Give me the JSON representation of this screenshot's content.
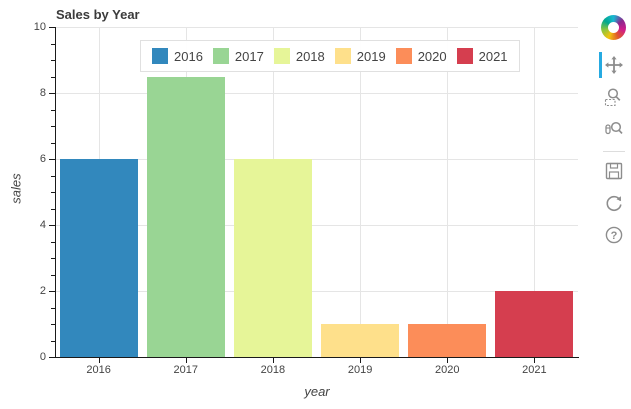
{
  "title": "Sales by Year",
  "chart_data": {
    "type": "bar",
    "title": "Sales by Year",
    "categories": [
      "2016",
      "2017",
      "2018",
      "2019",
      "2020",
      "2021"
    ],
    "values": [
      6,
      8.5,
      6,
      1,
      1,
      2
    ],
    "bar_colors": [
      "#3288bd",
      "#99d594",
      "#e6f598",
      "#fee08b",
      "#fc8d59",
      "#d53e4f"
    ],
    "xlabel": "year",
    "ylabel": "sales",
    "ylim": [
      0,
      10
    ],
    "yticks": [
      0,
      2,
      4,
      6,
      8,
      10
    ],
    "y_minor_tick_step": 0.5,
    "grid": true,
    "vertical_grid": "category-centers",
    "legend_position": "top_center"
  },
  "axes": {
    "x_label": "year",
    "y_label": "sales",
    "y_tick_labels": [
      "0",
      "2",
      "4",
      "6",
      "8",
      "10"
    ],
    "x_tick_labels": [
      "2016",
      "2017",
      "2018",
      "2019",
      "2020",
      "2021"
    ]
  },
  "legend": {
    "items": [
      {
        "label": "2016",
        "color": "#3288bd"
      },
      {
        "label": "2017",
        "color": "#99d594"
      },
      {
        "label": "2018",
        "color": "#e6f598"
      },
      {
        "label": "2019",
        "color": "#fee08b"
      },
      {
        "label": "2020",
        "color": "#fc8d59"
      },
      {
        "label": "2021",
        "color": "#d53e4f"
      }
    ]
  },
  "toolbar": {
    "logo_icon": "bokeh-logo-icon",
    "active_color": "#26aae1",
    "tools": [
      {
        "name": "pan",
        "icon": "move-arrows-icon",
        "active": true
      },
      {
        "name": "box-zoom",
        "icon": "magnifier-dashed-box-icon",
        "active": false
      },
      {
        "name": "wheel-zoom",
        "icon": "magnifier-wheel-icon",
        "active": false
      },
      {
        "name": "save",
        "icon": "floppy-disk-icon",
        "active": false
      },
      {
        "name": "reset",
        "icon": "refresh-arrow-icon",
        "active": false
      },
      {
        "name": "help",
        "icon": "question-mark-circle-icon",
        "active": false
      }
    ]
  },
  "colors": {
    "grid": "#e5e5e5",
    "axis_line": "#1a1a1a",
    "tick_label": "#444444",
    "title_text": "#3b3b3b",
    "toolbar_icon": "#8d8d8d"
  }
}
